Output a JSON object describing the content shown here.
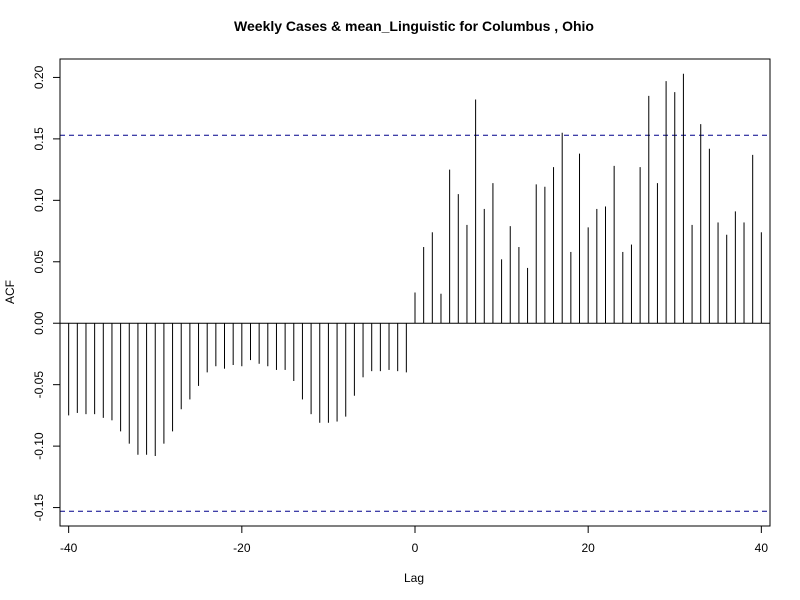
{
  "chart_data": {
    "type": "bar",
    "title": "Weekly Cases & mean_Linguistic for Columbus , Ohio",
    "xlabel": "Lag",
    "ylabel": "ACF",
    "xlim": [
      -41,
      41
    ],
    "ylim": [
      -0.165,
      0.215
    ],
    "x_ticks": [
      -40,
      -20,
      0,
      20,
      40
    ],
    "x_tick_labels": [
      "-40",
      "-20",
      "0",
      "20",
      "40"
    ],
    "y_ticks": [
      -0.15,
      -0.1,
      -0.05,
      0.0,
      0.05,
      0.1,
      0.15,
      0.2
    ],
    "y_tick_labels": [
      "-0.15",
      "-0.10",
      "-0.05",
      "0.00",
      "0.05",
      "0.10",
      "0.15",
      "0.20"
    ],
    "confidence_bound": 0.153,
    "bound_color": "#00008b",
    "line_color": "#000000",
    "series": [
      {
        "name": "ACF",
        "lags": [
          -40,
          -39,
          -38,
          -37,
          -36,
          -35,
          -34,
          -33,
          -32,
          -31,
          -30,
          -29,
          -28,
          -27,
          -26,
          -25,
          -24,
          -23,
          -22,
          -21,
          -20,
          -19,
          -18,
          -17,
          -16,
          -15,
          -14,
          -13,
          -12,
          -11,
          -10,
          -9,
          -8,
          -7,
          -6,
          -5,
          -4,
          -3,
          -2,
          -1,
          0,
          1,
          2,
          3,
          4,
          5,
          6,
          7,
          8,
          9,
          10,
          11,
          12,
          13,
          14,
          15,
          16,
          17,
          18,
          19,
          20,
          21,
          22,
          23,
          24,
          25,
          26,
          27,
          28,
          29,
          30,
          31,
          32,
          33,
          34,
          35,
          36,
          37,
          38,
          39,
          40
        ],
        "values": [
          -0.075,
          -0.073,
          -0.074,
          -0.074,
          -0.077,
          -0.079,
          -0.088,
          -0.098,
          -0.107,
          -0.107,
          -0.108,
          -0.098,
          -0.088,
          -0.07,
          -0.062,
          -0.051,
          -0.04,
          -0.035,
          -0.037,
          -0.034,
          -0.035,
          -0.03,
          -0.033,
          -0.035,
          -0.038,
          -0.038,
          -0.047,
          -0.062,
          -0.074,
          -0.081,
          -0.081,
          -0.08,
          -0.076,
          -0.059,
          -0.044,
          -0.039,
          -0.039,
          -0.038,
          -0.039,
          -0.04,
          0.025,
          0.062,
          0.074,
          0.024,
          0.125,
          0.105,
          0.08,
          0.182,
          0.093,
          0.114,
          0.052,
          0.079,
          0.062,
          0.045,
          0.113,
          0.111,
          0.127,
          0.155,
          0.058,
          0.138,
          0.078,
          0.093,
          0.095,
          0.128,
          0.058,
          0.064,
          0.127,
          0.185,
          0.114,
          0.197,
          0.188,
          0.203,
          0.08,
          0.162,
          0.142,
          0.082,
          0.072,
          0.091,
          0.082,
          0.137,
          0.074
        ]
      }
    ]
  }
}
